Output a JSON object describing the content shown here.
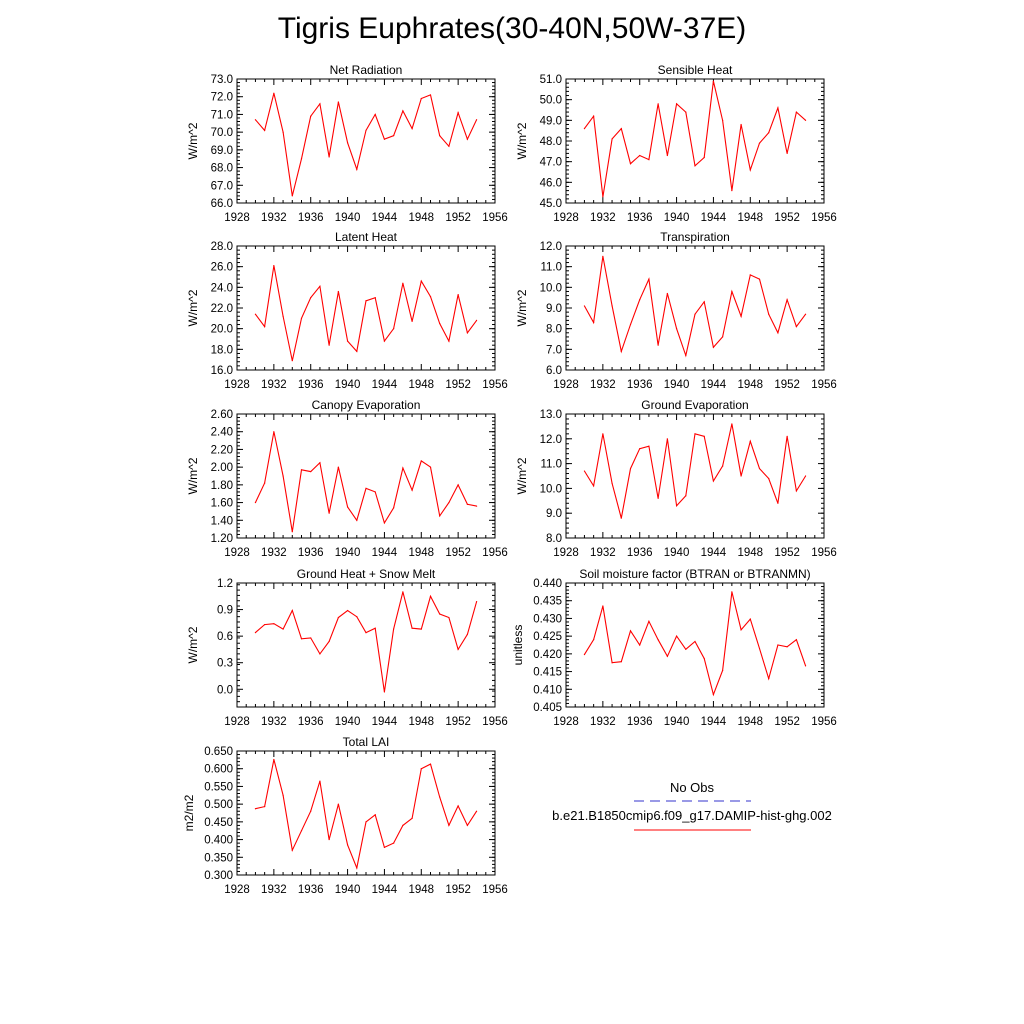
{
  "title": "Tigris Euphrates(30-40N,50W-37E)",
  "colors": {
    "model": "#ff0000",
    "obs": "#3333cc",
    "axis": "#000000"
  },
  "legend": {
    "obs_label": "No Obs",
    "model_label": "b.e21.B1850cmip6.f09_g17.DAMIP-hist-ghg.002"
  },
  "chart_data": [
    {
      "type": "line",
      "title": "Net Radiation",
      "ylabel": "W/m^2",
      "xlim": [
        1928,
        1956
      ],
      "xticks": [
        "1928",
        "1932",
        "1936",
        "1940",
        "1944",
        "1948",
        "1952",
        "1956"
      ],
      "ylim": [
        66.0,
        73.0
      ],
      "yticks": [
        "66.0",
        "67.0",
        "68.0",
        "69.0",
        "70.0",
        "71.0",
        "72.0",
        "73.0"
      ],
      "x": [
        1930,
        1931,
        1932,
        1933,
        1934,
        1935,
        1936,
        1937,
        1938,
        1939,
        1940,
        1941,
        1942,
        1943,
        1944,
        1945,
        1946,
        1947,
        1948,
        1949,
        1950,
        1951,
        1952,
        1953,
        1954
      ],
      "series": [
        {
          "values": [
            70.7,
            70.1,
            72.2,
            70.0,
            66.4,
            68.5,
            70.9,
            71.6,
            68.6,
            71.7,
            69.4,
            67.9,
            70.1,
            71.0,
            69.6,
            69.8,
            71.2,
            70.2,
            71.9,
            72.1,
            69.8,
            69.2,
            71.1,
            69.6,
            70.7
          ]
        }
      ]
    },
    {
      "type": "line",
      "title": "Sensible Heat",
      "ylabel": "W/m^2",
      "xlim": [
        1928,
        1956
      ],
      "xticks": [
        "1928",
        "1932",
        "1936",
        "1940",
        "1944",
        "1948",
        "1952",
        "1956"
      ],
      "ylim": [
        45.0,
        51.0
      ],
      "yticks": [
        "45.0",
        "46.0",
        "47.0",
        "48.0",
        "49.0",
        "50.0",
        "51.0"
      ],
      "x": [
        1930,
        1931,
        1932,
        1933,
        1934,
        1935,
        1936,
        1937,
        1938,
        1939,
        1940,
        1941,
        1942,
        1943,
        1944,
        1945,
        1946,
        1947,
        1948,
        1949,
        1950,
        1951,
        1952,
        1953,
        1954
      ],
      "series": [
        {
          "values": [
            48.6,
            49.2,
            45.3,
            48.1,
            48.6,
            46.9,
            47.3,
            47.1,
            49.8,
            47.3,
            49.8,
            49.4,
            46.8,
            47.2,
            50.9,
            49.0,
            45.6,
            48.8,
            46.6,
            47.9,
            48.4,
            49.6,
            47.4,
            49.4,
            49.0
          ]
        }
      ]
    },
    {
      "type": "line",
      "title": "Latent Heat",
      "ylabel": "W/m^2",
      "xlim": [
        1928,
        1956
      ],
      "xticks": [
        "1928",
        "1932",
        "1936",
        "1940",
        "1944",
        "1948",
        "1952",
        "1956"
      ],
      "ylim": [
        16.0,
        28.0
      ],
      "yticks": [
        "16.0",
        "18.0",
        "20.0",
        "22.0",
        "24.0",
        "26.0",
        "28.0"
      ],
      "x": [
        1930,
        1931,
        1932,
        1933,
        1934,
        1935,
        1936,
        1937,
        1938,
        1939,
        1940,
        1941,
        1942,
        1943,
        1944,
        1945,
        1946,
        1947,
        1948,
        1949,
        1950,
        1951,
        1952,
        1953,
        1954
      ],
      "series": [
        {
          "values": [
            21.4,
            20.2,
            26.1,
            21.2,
            16.9,
            21.0,
            23.0,
            24.1,
            18.4,
            23.6,
            18.8,
            17.8,
            22.7,
            23.0,
            18.8,
            20.0,
            24.4,
            20.7,
            24.6,
            23.1,
            20.5,
            18.8,
            23.3,
            19.6,
            20.8
          ]
        }
      ]
    },
    {
      "type": "line",
      "title": "Transpiration",
      "ylabel": "W/m^2",
      "xlim": [
        1928,
        1956
      ],
      "xticks": [
        "1928",
        "1932",
        "1936",
        "1940",
        "1944",
        "1948",
        "1952",
        "1956"
      ],
      "ylim": [
        6.0,
        12.0
      ],
      "yticks": [
        "6.0",
        "7.0",
        "8.0",
        "9.0",
        "10.0",
        "11.0",
        "12.0"
      ],
      "x": [
        1930,
        1931,
        1932,
        1933,
        1934,
        1935,
        1936,
        1937,
        1938,
        1939,
        1940,
        1941,
        1942,
        1943,
        1944,
        1945,
        1946,
        1947,
        1948,
        1949,
        1950,
        1951,
        1952,
        1953,
        1954
      ],
      "series": [
        {
          "values": [
            9.1,
            8.3,
            11.5,
            9.1,
            6.9,
            8.2,
            9.4,
            10.4,
            7.2,
            9.7,
            8.0,
            6.7,
            8.7,
            9.3,
            7.1,
            7.6,
            9.8,
            8.6,
            10.6,
            10.4,
            8.7,
            7.8,
            9.4,
            8.1,
            8.7
          ]
        }
      ]
    },
    {
      "type": "line",
      "title": "Canopy Evaporation",
      "ylabel": "W/m^2",
      "xlim": [
        1928,
        1956
      ],
      "xticks": [
        "1928",
        "1932",
        "1936",
        "1940",
        "1944",
        "1948",
        "1952",
        "1956"
      ],
      "ylim": [
        1.2,
        2.6
      ],
      "yticks": [
        "1.20",
        "1.40",
        "1.60",
        "1.80",
        "2.00",
        "2.20",
        "2.40",
        "2.60"
      ],
      "x": [
        1930,
        1931,
        1932,
        1933,
        1934,
        1935,
        1936,
        1937,
        1938,
        1939,
        1940,
        1941,
        1942,
        1943,
        1944,
        1945,
        1946,
        1947,
        1948,
        1949,
        1950,
        1951,
        1952,
        1953,
        1954
      ],
      "series": [
        {
          "values": [
            1.6,
            1.82,
            2.4,
            1.9,
            1.27,
            1.97,
            1.95,
            2.05,
            1.48,
            2.0,
            1.55,
            1.4,
            1.76,
            1.72,
            1.37,
            1.54,
            1.99,
            1.74,
            2.07,
            2.0,
            1.45,
            1.6,
            1.8,
            1.58,
            1.56
          ]
        }
      ]
    },
    {
      "type": "line",
      "title": "Ground Evaporation",
      "ylabel": "W/m^2",
      "xlim": [
        1928,
        1956
      ],
      "xticks": [
        "1928",
        "1932",
        "1936",
        "1940",
        "1944",
        "1948",
        "1952",
        "1956"
      ],
      "ylim": [
        8.0,
        13.0
      ],
      "yticks": [
        "8.0",
        "9.0",
        "10.0",
        "11.0",
        "12.0",
        "13.0"
      ],
      "x": [
        1930,
        1931,
        1932,
        1933,
        1934,
        1935,
        1936,
        1937,
        1938,
        1939,
        1940,
        1941,
        1942,
        1943,
        1944,
        1945,
        1946,
        1947,
        1948,
        1949,
        1950,
        1951,
        1952,
        1953,
        1954
      ],
      "series": [
        {
          "values": [
            10.7,
            10.1,
            12.2,
            10.2,
            8.8,
            10.8,
            11.6,
            11.7,
            9.6,
            12.0,
            9.3,
            9.7,
            12.2,
            12.1,
            10.3,
            10.9,
            12.6,
            10.5,
            11.9,
            10.8,
            10.4,
            9.4,
            12.1,
            9.9,
            10.5
          ]
        }
      ]
    },
    {
      "type": "line",
      "title": "Ground Heat + Snow Melt",
      "ylabel": "W/m^2",
      "xlim": [
        1928,
        1956
      ],
      "xticks": [
        "1928",
        "1932",
        "1936",
        "1940",
        "1944",
        "1948",
        "1952",
        "1956"
      ],
      "ylim": [
        -0.2,
        1.2
      ],
      "yticks": [
        "0.0",
        "0.3",
        "0.6",
        "0.9",
        "1.2"
      ],
      "ytick_values": [
        0.0,
        0.3,
        0.6,
        0.9,
        1.2
      ],
      "x": [
        1930,
        1931,
        1932,
        1933,
        1934,
        1935,
        1936,
        1937,
        1938,
        1939,
        1940,
        1941,
        1942,
        1943,
        1944,
        1945,
        1946,
        1947,
        1948,
        1949,
        1950,
        1951,
        1952,
        1953,
        1954
      ],
      "series": [
        {
          "values": [
            0.64,
            0.73,
            0.74,
            0.68,
            0.89,
            0.57,
            0.58,
            0.4,
            0.54,
            0.81,
            0.89,
            0.82,
            0.64,
            0.69,
            -0.03,
            0.68,
            1.1,
            0.69,
            0.68,
            1.05,
            0.85,
            0.81,
            0.45,
            0.62,
            0.99
          ]
        }
      ]
    },
    {
      "type": "line",
      "title": "Soil moisture factor (BTRAN or BTRANMN)",
      "ylabel": "unitless",
      "xlim": [
        1928,
        1956
      ],
      "xticks": [
        "1928",
        "1932",
        "1936",
        "1940",
        "1944",
        "1948",
        "1952",
        "1956"
      ],
      "ylim": [
        0.405,
        0.44
      ],
      "yticks": [
        "0.405",
        "0.410",
        "0.415",
        "0.420",
        "0.425",
        "0.430",
        "0.435",
        "0.440"
      ],
      "x": [
        1930,
        1931,
        1932,
        1933,
        1934,
        1935,
        1936,
        1937,
        1938,
        1939,
        1940,
        1941,
        1942,
        1943,
        1944,
        1945,
        1946,
        1947,
        1948,
        1949,
        1950,
        1951,
        1952,
        1953,
        1954
      ],
      "series": [
        {
          "values": [
            0.4198,
            0.424,
            0.4335,
            0.4175,
            0.4178,
            0.4265,
            0.4225,
            0.4292,
            0.424,
            0.4193,
            0.425,
            0.4213,
            0.4235,
            0.4187,
            0.4085,
            0.4153,
            0.4375,
            0.4268,
            0.4298,
            0.4215,
            0.413,
            0.4225,
            0.422,
            0.424,
            0.4166
          ]
        }
      ]
    },
    {
      "type": "line",
      "title": "Total LAI",
      "ylabel": "m2/m2",
      "xlim": [
        1928,
        1956
      ],
      "xticks": [
        "1928",
        "1932",
        "1936",
        "1940",
        "1944",
        "1948",
        "1952",
        "1956"
      ],
      "ylim": [
        0.3,
        0.65
      ],
      "yticks": [
        "0.300",
        "0.350",
        "0.400",
        "0.450",
        "0.500",
        "0.550",
        "0.600",
        "0.650"
      ],
      "x": [
        1930,
        1931,
        1932,
        1933,
        1934,
        1935,
        1936,
        1937,
        1938,
        1939,
        1940,
        1941,
        1942,
        1943,
        1944,
        1945,
        1946,
        1947,
        1948,
        1949,
        1950,
        1951,
        1952,
        1953,
        1954
      ],
      "series": [
        {
          "values": [
            0.487,
            0.493,
            0.626,
            0.525,
            0.37,
            0.425,
            0.48,
            0.565,
            0.4,
            0.5,
            0.385,
            0.32,
            0.45,
            0.47,
            0.378,
            0.39,
            0.44,
            0.46,
            0.6,
            0.613,
            0.52,
            0.44,
            0.495,
            0.44,
            0.48
          ]
        }
      ]
    }
  ]
}
